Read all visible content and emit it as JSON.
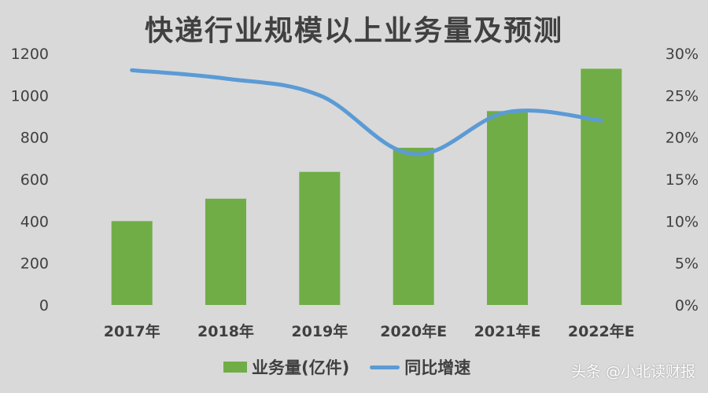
{
  "chart_data": {
    "type": "bar+line",
    "title": "快递行业规模以上业务量及预测",
    "categories": [
      "2017年",
      "2018年",
      "2019年",
      "2020年E",
      "2021年E",
      "2022年E"
    ],
    "series": [
      {
        "name": "业务量(亿件)",
        "type": "bar",
        "axis": "left",
        "values": [
          400,
          507,
          635,
          750,
          925,
          1127
        ],
        "color": "#70ad47"
      },
      {
        "name": "同比增速",
        "type": "line",
        "axis": "right",
        "values": [
          0.28,
          0.27,
          0.25,
          0.18,
          0.23,
          0.22
        ],
        "color": "#5b9bd5"
      }
    ],
    "ylim_left": [
      0,
      1200
    ],
    "ylim_right": [
      0,
      0.3
    ],
    "yticks_left": [
      "0",
      "200",
      "400",
      "600",
      "800",
      "1000",
      "1200"
    ],
    "yticks_right": [
      "0%",
      "5%",
      "10%",
      "15%",
      "20%",
      "25%",
      "30%"
    ],
    "grid": false,
    "legend_position": "bottom"
  },
  "watermark": "头条 @小北读财报",
  "background_color": "#d9d9d9"
}
